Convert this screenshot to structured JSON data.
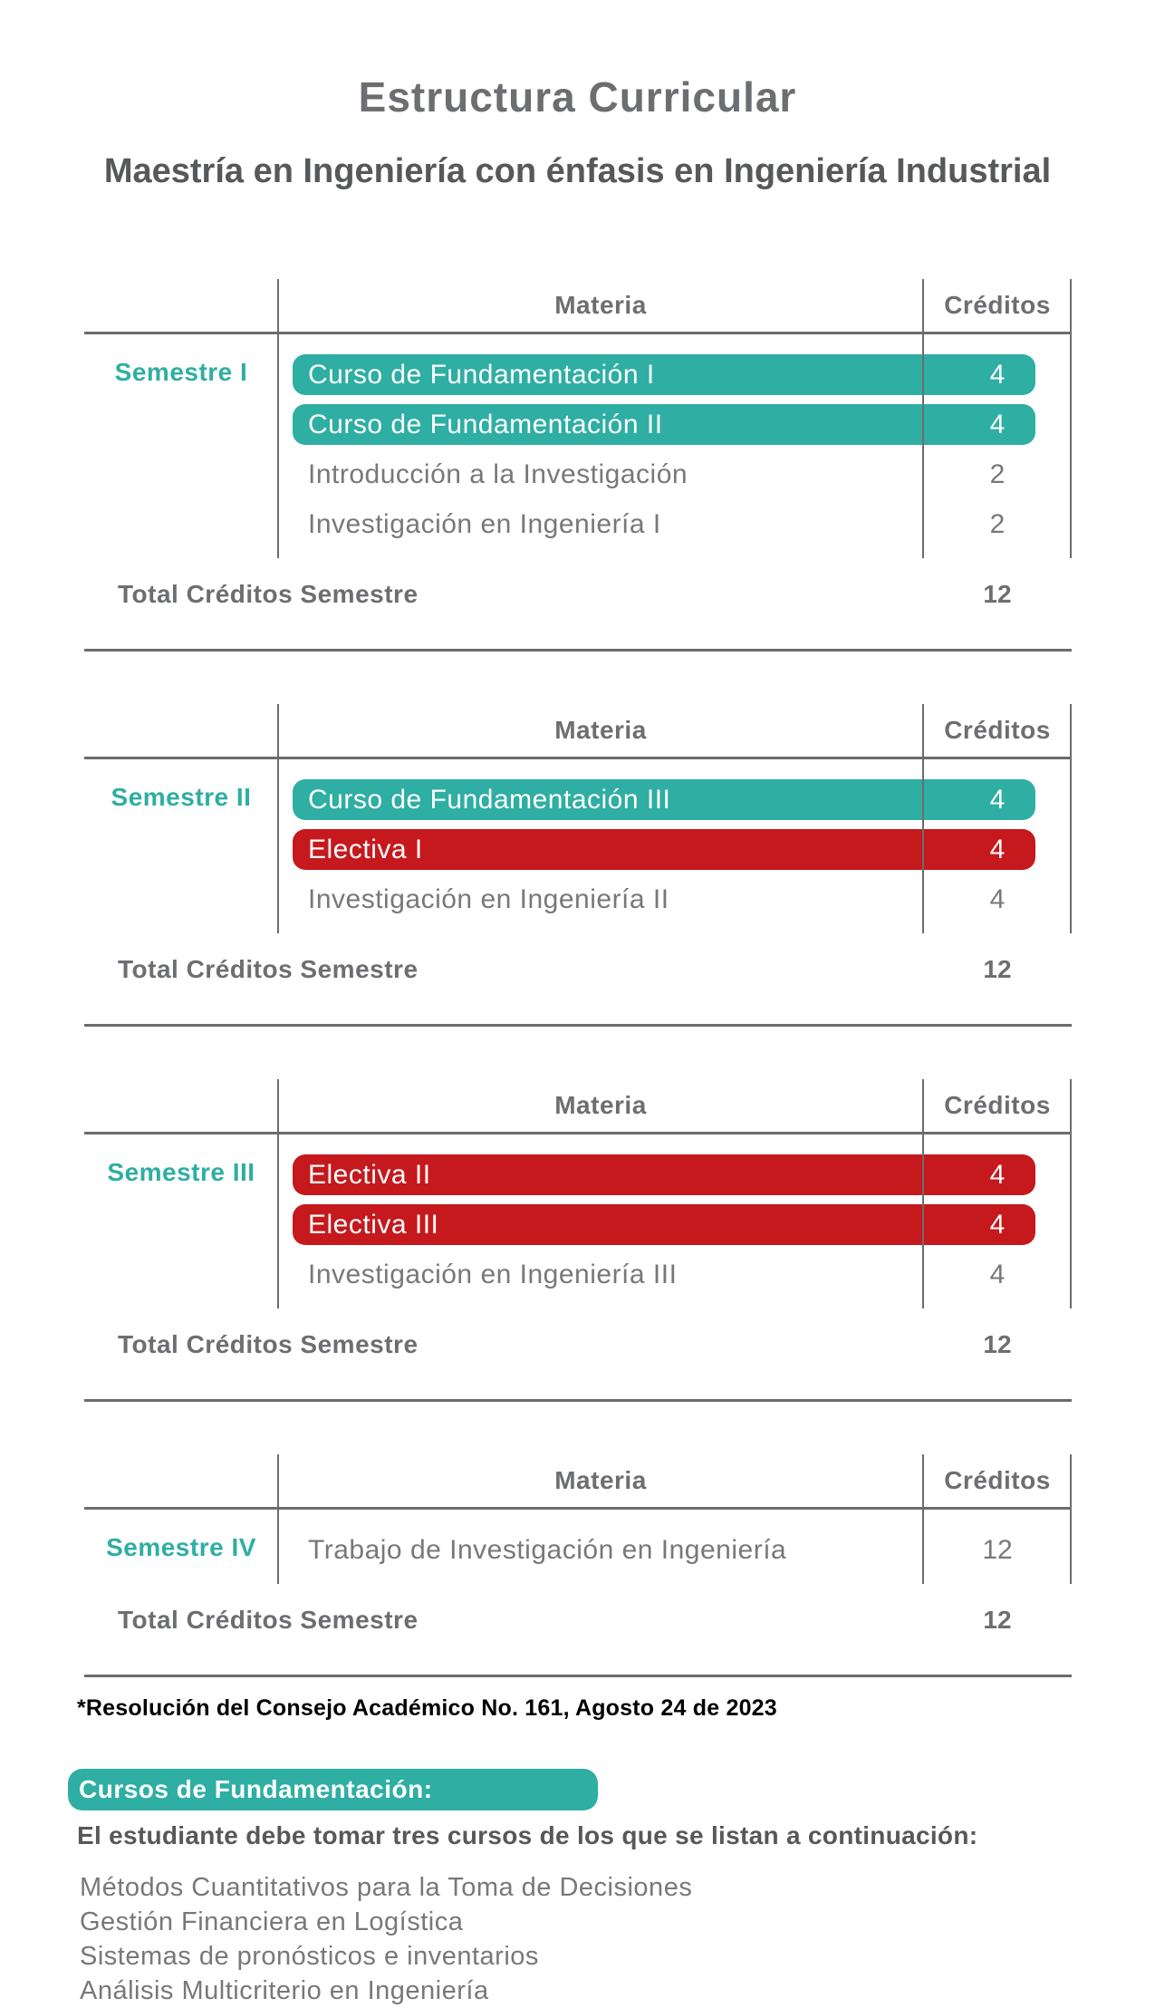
{
  "page": {
    "title": "Estructura Curricular",
    "subtitle": "Maestría en Ingeniería con énfasis en Ingeniería Industrial"
  },
  "colors": {
    "teal": "#2FAEA3",
    "red": "#C5191D",
    "text_gray": "#6D6E71",
    "row_text_gray": "#77787B",
    "dark_gray": "#57585A",
    "line_gray": "#6B6C6E"
  },
  "table_headers": {
    "materia": "Materia",
    "creditos": "Créditos"
  },
  "total_label": "Total Créditos Semestre",
  "semesters": [
    {
      "label": "Semestre I",
      "rows": [
        {
          "name": "Curso de Fundamentación I",
          "credits": "4",
          "highlight": "teal"
        },
        {
          "name": "Curso de Fundamentación II",
          "credits": "4",
          "highlight": "teal"
        },
        {
          "name": "Introducción a la Investigación",
          "credits": "2",
          "highlight": "none"
        },
        {
          "name": "Investigación en Ingeniería I",
          "credits": "2",
          "highlight": "none"
        }
      ],
      "total": "12"
    },
    {
      "label": "Semestre II",
      "rows": [
        {
          "name": "Curso de Fundamentación III",
          "credits": "4",
          "highlight": "teal"
        },
        {
          "name": "Electiva I",
          "credits": "4",
          "highlight": "red"
        },
        {
          "name": "Investigación en Ingeniería II",
          "credits": "4",
          "highlight": "none"
        }
      ],
      "total": "12"
    },
    {
      "label": "Semestre III",
      "rows": [
        {
          "name": "Electiva II",
          "credits": "4",
          "highlight": "red"
        },
        {
          "name": "Electiva III",
          "credits": "4",
          "highlight": "red"
        },
        {
          "name": "Investigación en Ingeniería III",
          "credits": "4",
          "highlight": "none"
        }
      ],
      "total": "12"
    },
    {
      "label": "Semestre IV",
      "rows": [
        {
          "name": "Trabajo de Investigación en Ingeniería",
          "credits": "12",
          "highlight": "none"
        }
      ],
      "total": "12"
    }
  ],
  "footnote": "*Resolución del Consejo Académico No. 161, Agosto 24 de 2023",
  "fundamentacion": {
    "banner": "Cursos de Fundamentación:",
    "intro": "El estudiante debe tomar tres cursos de los que se listan a continuación:",
    "courses": [
      "Métodos Cuantitativos para la Toma de Decisiones",
      "Gestión Financiera en Logística",
      "Sistemas de pronósticos e inventarios",
      "Análisis Multicriterio en Ingeniería"
    ]
  }
}
